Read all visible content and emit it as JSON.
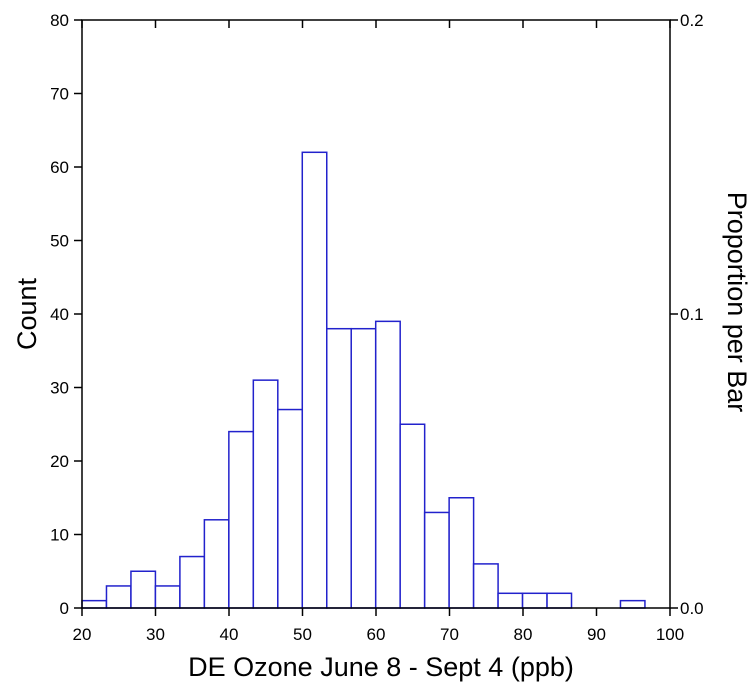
{
  "chart_data": {
    "type": "bar",
    "subtype": "histogram",
    "xlabel": "DE Ozone June 8 - Sept 4 (ppb)",
    "ylabel": "Count",
    "y2label": "Proportion per Bar",
    "xlim": [
      20,
      100
    ],
    "ylim": [
      0,
      80
    ],
    "y2lim": [
      0.0,
      0.2
    ],
    "x_ticks": [
      "20",
      "30",
      "40",
      "50",
      "60",
      "70",
      "80",
      "90",
      "100"
    ],
    "y_ticks": [
      "0",
      "10",
      "20",
      "30",
      "40",
      "50",
      "60",
      "70",
      "80"
    ],
    "y2_ticks": [
      "0.0",
      "0.1",
      "0.2"
    ],
    "bin_width": 3.33,
    "bin_start": 20,
    "counts": [
      1,
      3,
      5,
      3,
      7,
      12,
      24,
      31,
      27,
      62,
      38,
      38,
      39,
      25,
      13,
      15,
      6,
      2,
      2,
      2,
      0,
      0,
      1,
      0
    ],
    "bar_color": "#2222cc",
    "grid": false
  }
}
